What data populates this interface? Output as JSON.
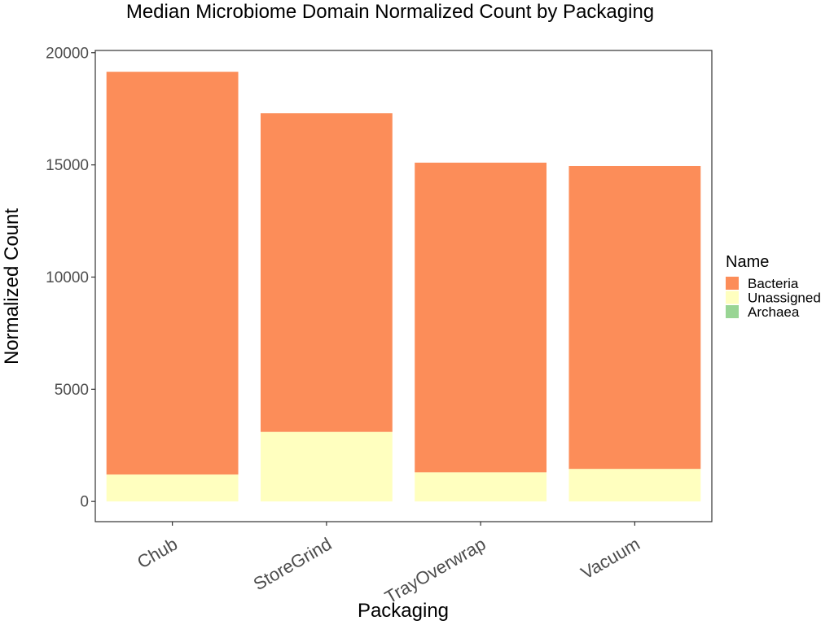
{
  "chart_data": {
    "type": "bar",
    "stacked": true,
    "title": "Median Microbiome Domain Normalized Count by Packaging",
    "xlabel": "Packaging",
    "ylabel": "Normalized Count",
    "categories": [
      "Chub",
      "StoreGrind",
      "TrayOverwrap",
      "Vacuum"
    ],
    "series": [
      {
        "name": "Unassigned",
        "color": "#ffffbf",
        "values": [
          1200,
          3100,
          1300,
          1450
        ]
      },
      {
        "name": "Bacteria",
        "color": "#fc8d59",
        "values": [
          17950,
          14200,
          13800,
          13500
        ]
      },
      {
        "name": "Archaea",
        "color": "#99d594",
        "values": [
          0,
          0,
          0,
          0
        ]
      }
    ],
    "ylim": [
      -900,
      20100
    ],
    "yticks": [
      0,
      5000,
      10000,
      15000,
      20000
    ],
    "ytick_labels": [
      "0",
      "5000",
      "10000",
      "15000",
      "20000"
    ],
    "grid": false,
    "legend": {
      "title": "Name",
      "placement": "right",
      "entries": [
        {
          "label": "Bacteria",
          "color": "#fc8d59"
        },
        {
          "label": "Unassigned",
          "color": "#ffffbf"
        },
        {
          "label": "Archaea",
          "color": "#99d594"
        }
      ]
    }
  }
}
